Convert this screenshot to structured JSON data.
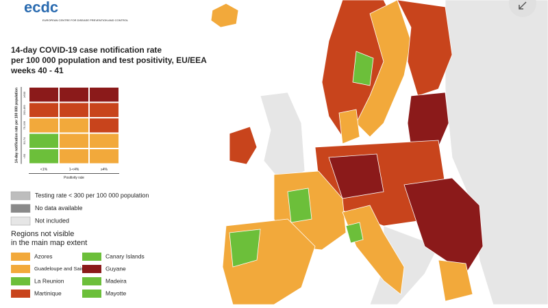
{
  "logo": {
    "name": "ecdc",
    "subtitle": "EUROPEAN CENTRE FOR DISEASE PREVENTION AND CONTROL"
  },
  "title": [
    "14-day COVID-19 case notification rate",
    "per 100 000 population and test positivity, EU/EEA",
    "weeks 40 - 41"
  ],
  "matrix": {
    "y_label": "14-day notification rate per 100 000 population",
    "rows": [
      "≥500",
      "200-499",
      "75-199",
      "50-74",
      "<50"
    ],
    "columns": [
      "<1%",
      "1-<4%",
      "≥4%"
    ],
    "x_label": "Positivity rate",
    "colors": [
      [
        "#8b1a1a",
        "#8b1a1a",
        "#8b1a1a"
      ],
      [
        "#c8441c",
        "#c8441c",
        "#c8441c"
      ],
      [
        "#f2a93b",
        "#f2a93b",
        "#c8441c"
      ],
      [
        "#6cbf3a",
        "#f2a93b",
        "#f2a93b"
      ],
      [
        "#6cbf3a",
        "#f2a93b",
        "#f2a93b"
      ]
    ]
  },
  "legend": [
    {
      "label": "Testing rate < 300 per 100 000 population",
      "color": "#bdbdbd"
    },
    {
      "label": "No data available",
      "color": "#8a8a8a"
    },
    {
      "label": "Not included",
      "color": "#e6e6e6"
    }
  ],
  "regions_title": [
    "Regions not visible",
    "in the main map extent"
  ],
  "regions": [
    {
      "label": "Azores",
      "color": "#f2a93b"
    },
    {
      "label": "Canary Islands",
      "color": "#6cbf3a"
    },
    {
      "label": "Guadeloupe and Saint Martin",
      "color": "#f2a93b"
    },
    {
      "label": "Guyane",
      "color": "#8b1a1a"
    },
    {
      "label": "La Reunion",
      "color": "#6cbf3a"
    },
    {
      "label": "Madeira",
      "color": "#6cbf3a"
    },
    {
      "label": "Martinique",
      "color": "#c8441c"
    },
    {
      "label": "Mayotte",
      "color": "#6cbf3a"
    }
  ]
}
